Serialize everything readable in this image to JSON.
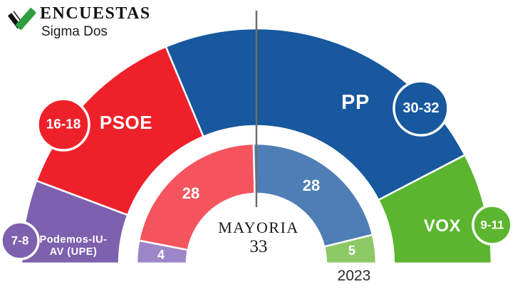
{
  "header": {
    "brand": "ENCUESTAS",
    "subtitle": "Sigma Dos",
    "logo": {
      "icon": "checkmark-logo",
      "black_color": "#141414",
      "stripe_color": "#ffffff",
      "green_color": "#2e9e41"
    }
  },
  "chart_data": {
    "type": "pie",
    "variant": "half-donut, two concentric rings: outer = poll seat projection (range), inner = 2023 election result",
    "title": "",
    "legend_position": "on-chart",
    "total_seats_2023": 65,
    "majority": {
      "label": "MAYORIA",
      "value": "33"
    },
    "inner_ring_year_label": "2023",
    "majority_line_color": "#6e6e6e",
    "separator_color": "#ffffff",
    "parties": [
      {
        "id": "podemos",
        "label": "Podemos-IU-AV (UPE)",
        "label_lines": [
          "Podemos-IU-",
          "AV (UPE)"
        ],
        "range": "7-8",
        "seats_low": 7,
        "seats_high": 8,
        "seats_mid": 7.5,
        "seats_2023": 4,
        "color": "#7d60ae",
        "color_2023": "#9c86c8"
      },
      {
        "id": "psoe",
        "label": "PSOE",
        "label_lines": [
          "PSOE"
        ],
        "range": "16-18",
        "seats_low": 16,
        "seats_high": 18,
        "seats_mid": 17,
        "seats_2023": 28,
        "color": "#ee212b",
        "color_2023": "#f4545e"
      },
      {
        "id": "pp",
        "label": "PP",
        "label_lines": [
          "PP"
        ],
        "range": "30-32",
        "seats_low": 30,
        "seats_high": 32,
        "seats_mid": 31,
        "seats_2023": 28,
        "color": "#17589f",
        "color_2023": "#4e7eb5"
      },
      {
        "id": "vox",
        "label": "VOX",
        "label_lines": [
          "VOX"
        ],
        "range": "9-11",
        "seats_low": 9,
        "seats_high": 11,
        "seats_mid": 10,
        "seats_2023": 5,
        "color": "#5bb52e",
        "color_2023": "#8cc966"
      }
    ]
  }
}
